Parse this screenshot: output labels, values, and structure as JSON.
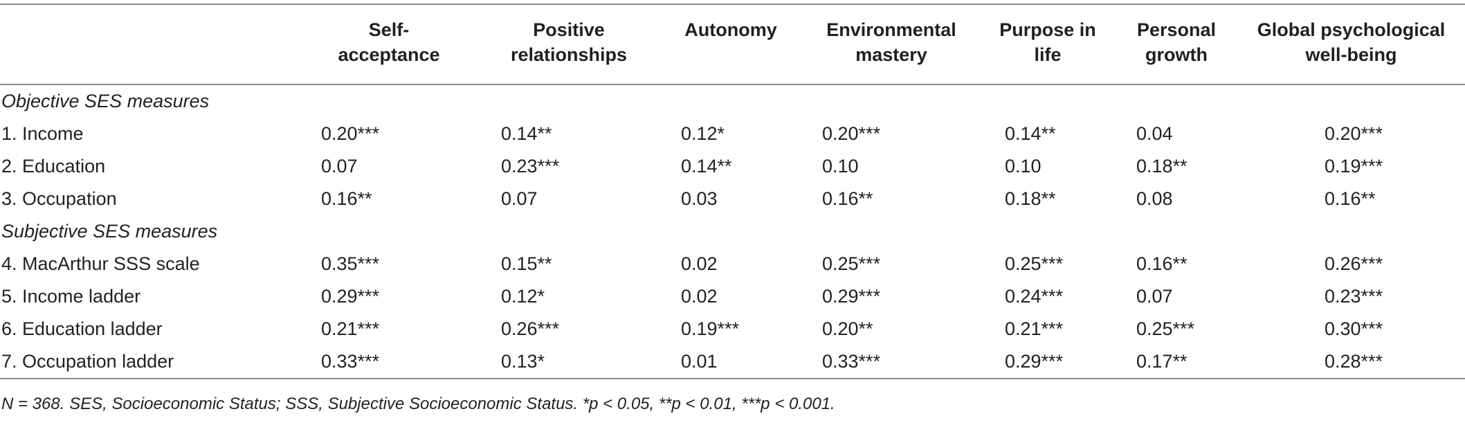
{
  "table": {
    "headers": [
      "",
      "Self-\nacceptance",
      "Positive\nrelationships",
      "Autonomy",
      "Environmental\nmastery",
      "Purpose in\nlife",
      "Personal\ngrowth",
      "Global psychological\nwell-being"
    ],
    "sections": [
      {
        "title": "Objective SES measures",
        "rows": [
          {
            "label": "1. Income",
            "values": [
              "0.20***",
              "0.14**",
              "0.12*",
              "0.20***",
              "0.14**",
              "0.04",
              "0.20***"
            ]
          },
          {
            "label": "2. Education",
            "values": [
              "0.07",
              "0.23***",
              "0.14**",
              "0.10",
              "0.10",
              "0.18**",
              "0.19***"
            ]
          },
          {
            "label": "3. Occupation",
            "values": [
              "0.16**",
              "0.07",
              "0.03",
              "0.16**",
              "0.18**",
              "0.08",
              "0.16**"
            ]
          }
        ]
      },
      {
        "title": "Subjective SES measures",
        "rows": [
          {
            "label": "4. MacArthur SSS scale",
            "values": [
              "0.35***",
              "0.15**",
              "0.02",
              "0.25***",
              "0.25***",
              "0.16**",
              "0.26***"
            ]
          },
          {
            "label": "5. Income ladder",
            "values": [
              "0.29***",
              "0.12*",
              "0.02",
              "0.29***",
              "0.24***",
              "0.07",
              "0.23***"
            ]
          },
          {
            "label": "6. Education ladder",
            "values": [
              "0.21***",
              "0.26***",
              "0.19***",
              "0.20**",
              "0.21***",
              "0.25***",
              "0.30***"
            ]
          },
          {
            "label": "7. Occupation ladder",
            "values": [
              "0.33***",
              "0.13*",
              "0.01",
              "0.33***",
              "0.29***",
              "0.17**",
              "0.28***"
            ]
          }
        ]
      }
    ],
    "note": "N = 368. SES, Socioeconomic Status; SSS, Subjective Socioeconomic Status. *p < 0.05, **p < 0.01, ***p < 0.001."
  }
}
